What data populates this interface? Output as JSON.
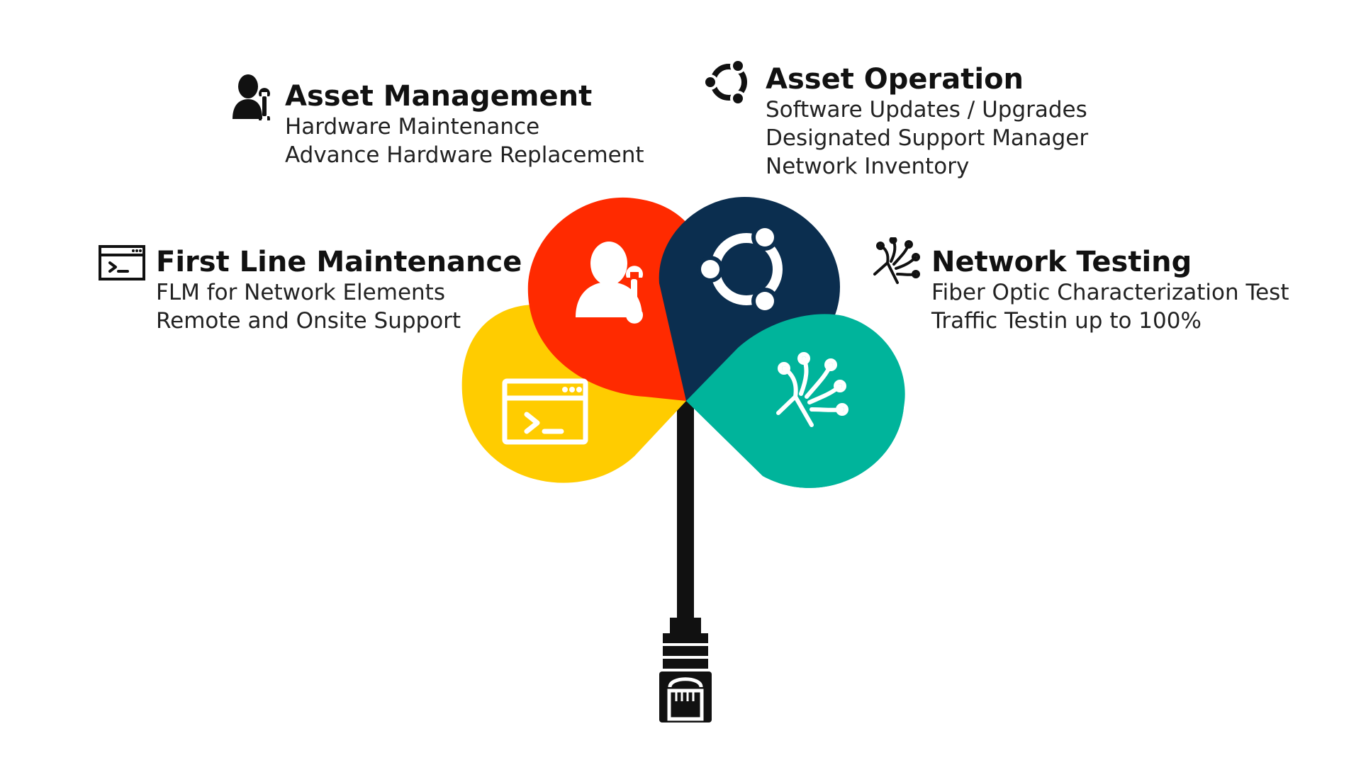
{
  "colors": {
    "asset_management": "#ff2a00",
    "asset_operation": "#0b2e4f",
    "network_testing": "#00b49b",
    "first_line_maintenance": "#ffcc00",
    "cable": "#111111",
    "text": "#111111"
  },
  "sections": {
    "asset_management": {
      "title": "Asset Management",
      "icon": "technician-wrench-icon",
      "lines": [
        "Hardware Maintenance",
        "Advance Hardware Replacement"
      ]
    },
    "asset_operation": {
      "title": "Asset Operation",
      "icon": "ubuntu-circle-icon",
      "lines": [
        "Software Updates / Upgrades",
        "Designated Support Manager",
        "Network Inventory"
      ]
    },
    "first_line_maintenance": {
      "title": "First Line Maintenance",
      "icon": "terminal-window-icon",
      "lines": [
        "FLM for Network Elements",
        "Remote and Onsite Support"
      ]
    },
    "network_testing": {
      "title": "Network Testing",
      "icon": "fiber-optic-icon",
      "lines": [
        "Fiber Optic Characterization Test",
        "Traffic Testin up to 100%"
      ]
    }
  },
  "center_graphic": {
    "connector_icon": "ethernet-plug-icon"
  }
}
